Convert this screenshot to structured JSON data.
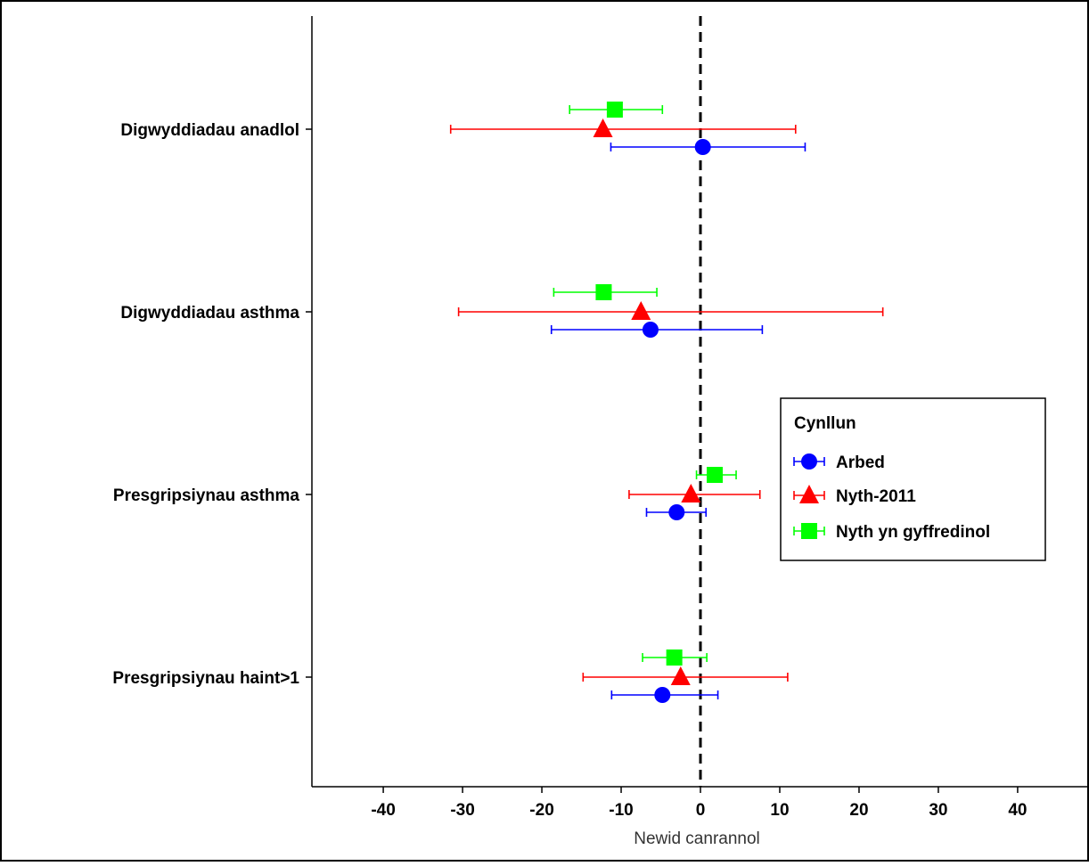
{
  "chart_data": {
    "type": "scatter",
    "subtype": "forest-plot",
    "title": "",
    "xlabel": "Newid canrannol",
    "ylabel": "",
    "xlim": [
      -49,
      49
    ],
    "xticks": [
      -40,
      -30,
      -20,
      -10,
      0,
      10,
      20,
      30,
      40
    ],
    "reference_line": {
      "x": 0,
      "style": "dashed",
      "color": "#000000"
    },
    "grid": false,
    "categories": [
      "Digwyddiadau anadlol",
      "Digwyddiadau asthma",
      "Presgripsiynau asthma",
      "Presgripsiynau haint>1"
    ],
    "legend": {
      "title": "Cynllun",
      "placement": "right"
    },
    "series": [
      {
        "name": "Arbed",
        "color": "#0000FF",
        "marker": "circle",
        "points": [
          {
            "category": "Digwyddiadau anadlol",
            "estimate": 0.3,
            "lower": -11.3,
            "upper": 13.2
          },
          {
            "category": "Digwyddiadau asthma",
            "estimate": -6.3,
            "lower": -18.8,
            "upper": 7.8
          },
          {
            "category": "Presgripsiynau asthma",
            "estimate": -3.0,
            "lower": -6.8,
            "upper": 0.7
          },
          {
            "category": "Presgripsiynau haint>1",
            "estimate": -4.8,
            "lower": -11.2,
            "upper": 2.2
          }
        ]
      },
      {
        "name": "Nyth-2011",
        "color": "#FF0000",
        "marker": "triangle",
        "points": [
          {
            "category": "Digwyddiadau anadlol",
            "estimate": -12.3,
            "lower": -31.5,
            "upper": 12.0
          },
          {
            "category": "Digwyddiadau asthma",
            "estimate": -7.5,
            "lower": -30.5,
            "upper": 23.0
          },
          {
            "category": "Presgripsiynau asthma",
            "estimate": -1.2,
            "lower": -9.0,
            "upper": 7.5
          },
          {
            "category": "Presgripsiynau haint>1",
            "estimate": -2.5,
            "lower": -14.8,
            "upper": 11.0
          }
        ]
      },
      {
        "name": "Nyth yn gyffredinol",
        "color": "#00FF00",
        "marker": "square",
        "points": [
          {
            "category": "Digwyddiadau anadlol",
            "estimate": -10.8,
            "lower": -16.5,
            "upper": -4.8
          },
          {
            "category": "Digwyddiadau asthma",
            "estimate": -12.2,
            "lower": -18.5,
            "upper": -5.5
          },
          {
            "category": "Presgripsiynau asthma",
            "estimate": 1.8,
            "lower": -0.5,
            "upper": 4.5
          },
          {
            "category": "Presgripsiynau haint>1",
            "estimate": -3.3,
            "lower": -7.3,
            "upper": 0.8
          }
        ]
      }
    ]
  }
}
